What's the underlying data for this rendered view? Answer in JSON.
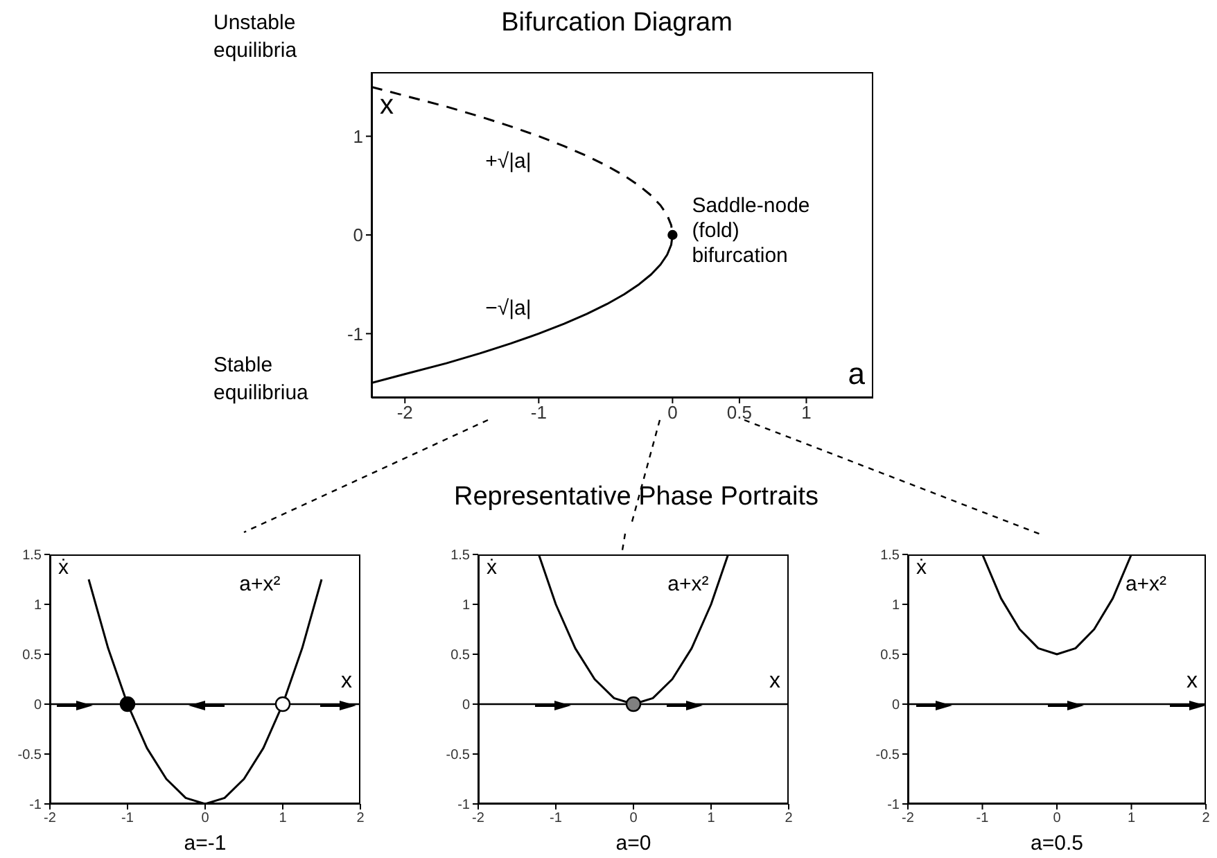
{
  "chart_data": [
    {
      "type": "line",
      "title": "Bifurcation Diagram",
      "xlabel": "a",
      "ylabel": "x",
      "xlim": [
        -2.25,
        1.5
      ],
      "ylim": [
        -1.65,
        1.65
      ],
      "xticks": [
        -2,
        -1,
        0,
        0.5,
        1
      ],
      "yticks": [
        -1,
        0,
        1
      ],
      "series": [
        {
          "line_style": "dashed",
          "color": "#000000",
          "x": [
            -2.25,
            -2,
            -1.69,
            -1.44,
            -1.21,
            -1,
            -0.81,
            -0.64,
            -0.49,
            -0.36,
            -0.25,
            -0.16,
            -0.09,
            -0.04,
            -0.01,
            0
          ],
          "values": [
            1.5,
            1.41,
            1.3,
            1.2,
            1.1,
            1,
            0.9,
            0.8,
            0.7,
            0.6,
            0.5,
            0.4,
            0.3,
            0.2,
            0.1,
            0
          ]
        },
        {
          "line_style": "solid",
          "color": "#000000",
          "x": [
            -2.25,
            -2,
            -1.69,
            -1.44,
            -1.21,
            -1,
            -0.81,
            -0.64,
            -0.49,
            -0.36,
            -0.25,
            -0.16,
            -0.09,
            -0.04,
            -0.01,
            0
          ],
          "values": [
            -1.5,
            -1.41,
            -1.3,
            -1.2,
            -1.1,
            -1,
            -0.9,
            -0.8,
            -0.7,
            -0.6,
            -0.5,
            -0.4,
            -0.3,
            -0.2,
            -0.1,
            0
          ]
        },
        {
          "type": "scatter",
          "marker": "circle",
          "color": "#000000",
          "x": [
            0
          ],
          "values": [
            0
          ]
        }
      ],
      "annotations": [
        "Unstable equilibria",
        "Stable equilibriua",
        "+√|a|",
        "−√|a|",
        {
          "text": "Saddle-node (fold) bifurcation",
          "x": 0,
          "y": 0
        }
      ]
    },
    {
      "type": "line",
      "subtitle": "a=-1",
      "xlabel": "x",
      "ylabel": "ẋ",
      "xlim": [
        -2,
        2
      ],
      "ylim": [
        -1,
        1.5
      ],
      "xticks": [
        -2,
        -1,
        0,
        1,
        2
      ],
      "yticks": [
        -1,
        -0.5,
        0,
        0.5,
        1,
        1.5
      ],
      "ref_lines": [
        {
          "axis": "y",
          "value": 0,
          "color": "#000000"
        }
      ],
      "series": [
        {
          "color": "#000000",
          "x": [
            -1.5,
            -1.25,
            -1,
            -0.75,
            -0.5,
            -0.25,
            0,
            0.25,
            0.5,
            0.75,
            1,
            1.25,
            1.5
          ],
          "values": [
            1.25,
            0.56,
            0,
            -0.44,
            -0.75,
            -0.94,
            -1,
            -0.94,
            -0.75,
            -0.44,
            0,
            0.56,
            1.25
          ]
        },
        {
          "type": "scatter",
          "marker": "circle",
          "colors": [
            "#000000",
            "#ffffff"
          ],
          "x": [
            -1,
            1
          ],
          "values": [
            0,
            0
          ]
        }
      ],
      "annotations": [
        "a+x²"
      ]
    },
    {
      "type": "line",
      "title": "Representative Phase Portraits",
      "subtitle": "a=0",
      "xlabel": "x",
      "ylabel": "ẋ",
      "xlim": [
        -2,
        2
      ],
      "ylim": [
        -1,
        1.5
      ],
      "xticks": [
        -2,
        -1,
        0,
        1,
        2
      ],
      "yticks": [
        -1,
        -0.5,
        0,
        0.5,
        1,
        1.5
      ],
      "ref_lines": [
        {
          "axis": "y",
          "value": 0,
          "color": "#000000"
        }
      ],
      "series": [
        {
          "color": "#000000",
          "x": [
            -1.22,
            -1,
            -0.75,
            -0.5,
            -0.25,
            0,
            0.25,
            0.5,
            0.75,
            1,
            1.22
          ],
          "values": [
            1.5,
            1,
            0.56,
            0.25,
            0.06,
            0,
            0.06,
            0.25,
            0.56,
            1,
            1.5
          ]
        },
        {
          "type": "scatter",
          "marker": "circle",
          "colors": [
            "#808080"
          ],
          "x": [
            0
          ],
          "values": [
            0
          ]
        }
      ],
      "annotations": [
        "a+x²"
      ]
    },
    {
      "type": "line",
      "subtitle": "a=0.5",
      "xlabel": "x",
      "ylabel": "ẋ",
      "xlim": [
        -2,
        2
      ],
      "ylim": [
        -1,
        1.5
      ],
      "xticks": [
        -2,
        -1,
        0,
        1,
        2
      ],
      "yticks": [
        -1,
        -0.5,
        0,
        0.5,
        1,
        1.5
      ],
      "ref_lines": [
        {
          "axis": "y",
          "value": 0,
          "color": "#000000"
        }
      ],
      "series": [
        {
          "color": "#000000",
          "x": [
            -1,
            -0.75,
            -0.5,
            -0.25,
            0,
            0.25,
            0.5,
            0.75,
            1
          ],
          "values": [
            1.5,
            1.06,
            0.75,
            0.56,
            0.5,
            0.56,
            0.75,
            1.06,
            1.5
          ]
        }
      ],
      "annotations": [
        "a+x²"
      ]
    }
  ]
}
